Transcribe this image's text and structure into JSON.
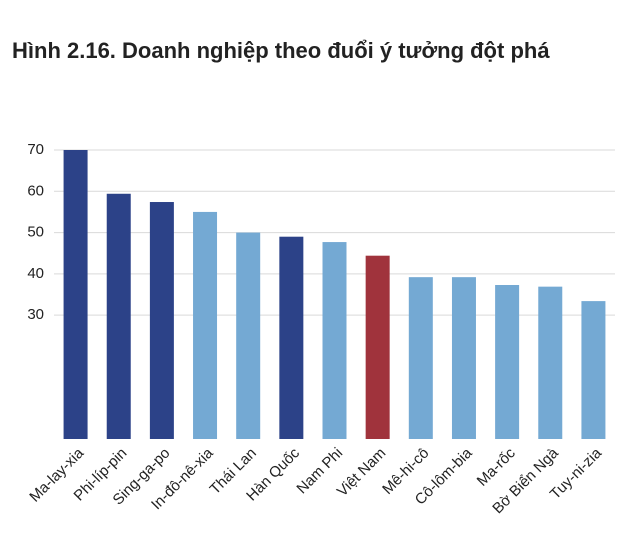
{
  "chart_data": {
    "type": "bar",
    "title": "Hình 2.16. Doanh nghiệp theo đuổi ý tưởng đột phá",
    "categories": [
      "Ma-lay-xia",
      "Phi-líp-pin",
      "Sing-ga-po",
      "In-đô-nê-xia",
      "Thái Lan",
      "Hàn Quốc",
      "Nam Phi",
      "Việt Nam",
      "Mê-hi-cô",
      "Cô-lôm-bia",
      "Ma-rốc",
      "Bờ Biển Ngà",
      "Tuy-ni-zia"
    ],
    "values": [
      70,
      59.4,
      57.4,
      55,
      50,
      49,
      47.7,
      44.4,
      39.2,
      39.2,
      37.3,
      36.9,
      33.4
    ],
    "colors": [
      "#2c4288",
      "#2c4288",
      "#2c4288",
      "#74a9d3",
      "#74a9d3",
      "#2c4288",
      "#74a9d3",
      "#a0333c",
      "#74a9d3",
      "#74a9d3",
      "#74a9d3",
      "#74a9d3",
      "#74a9d3"
    ],
    "ylim": [
      0,
      70
    ],
    "yticks": [
      30,
      40,
      50,
      60,
      70
    ],
    "grid": true
  }
}
